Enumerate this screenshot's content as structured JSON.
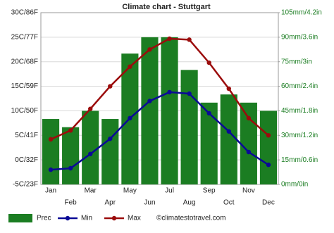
{
  "chart_data": {
    "type": "combo",
    "title": "Climate chart - Stuttgart",
    "categories": [
      "Jan",
      "Feb",
      "Mar",
      "Apr",
      "May",
      "Jun",
      "Jul",
      "Aug",
      "Sep",
      "Oct",
      "Nov",
      "Dec"
    ],
    "series": [
      {
        "name": "Prec",
        "type": "bar",
        "axis": "y2",
        "color": "#1b7d22",
        "values": [
          40,
          35,
          45,
          40,
          80,
          90,
          90,
          70,
          50,
          55,
          50,
          45
        ]
      },
      {
        "name": "Min",
        "type": "line",
        "color": "#0a0a96",
        "values": [
          -2,
          -1.7,
          1.2,
          4.3,
          8.5,
          12,
          13.8,
          13.5,
          9.5,
          5.8,
          1.6,
          -1
        ]
      },
      {
        "name": "Max",
        "type": "line",
        "color": "#9b0c0c",
        "values": [
          4.2,
          6,
          10.4,
          15,
          19,
          22.5,
          24.7,
          24.5,
          19.8,
          14.5,
          8.5,
          5
        ]
      }
    ],
    "ylim": [
      -5,
      30
    ],
    "yticks": [
      {
        "value": -5,
        "label": "-5C/23F"
      },
      {
        "value": 0,
        "label": "0C/32F"
      },
      {
        "value": 5,
        "label": "5C/41F"
      },
      {
        "value": 10,
        "label": "10C/50F"
      },
      {
        "value": 15,
        "label": "15C/59F"
      },
      {
        "value": 20,
        "label": "20C/68F"
      },
      {
        "value": 25,
        "label": "25C/77F"
      },
      {
        "value": 30,
        "label": "30C/86F"
      }
    ],
    "y2lim": [
      0,
      105
    ],
    "y2ticks": [
      {
        "value": 0,
        "label": "0mm/0in"
      },
      {
        "value": 15,
        "label": "15mm/0.6in"
      },
      {
        "value": 30,
        "label": "30mm/1.2in"
      },
      {
        "value": 45,
        "label": "45mm/1.8in"
      },
      {
        "value": 60,
        "label": "60mm/2.4in"
      },
      {
        "value": 75,
        "label": "75mm/3in"
      },
      {
        "value": 90,
        "label": "90mm/3.6in"
      },
      {
        "value": 105,
        "label": "105mm/4.2in"
      }
    ],
    "grid": true,
    "credit": "©climatestotravel.com"
  }
}
